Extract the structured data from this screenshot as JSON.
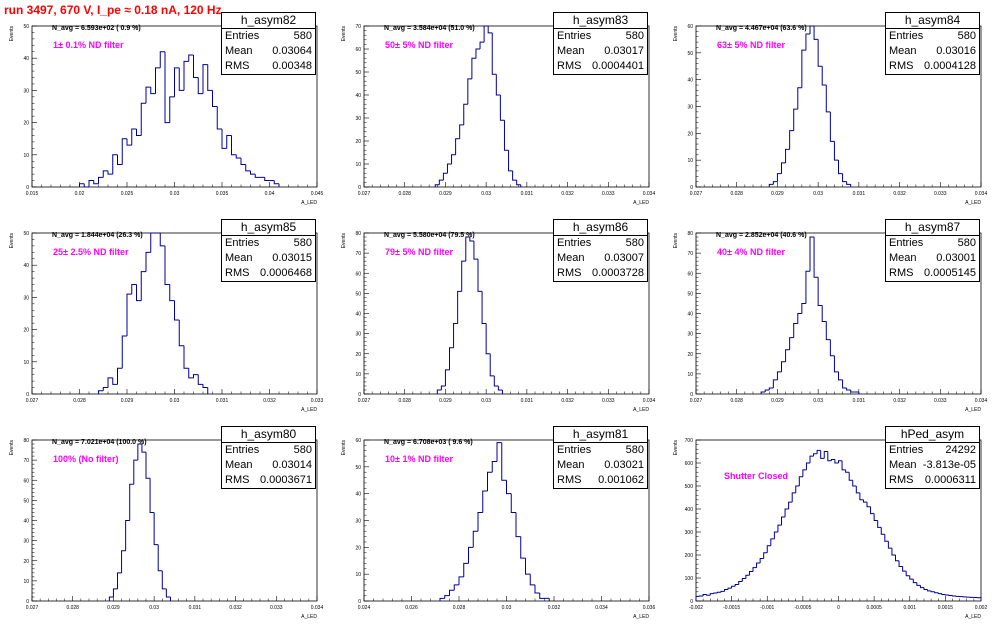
{
  "page": {
    "title": "run 3497,   670 V, I_pe ≈ 0.18 nA, 120 Hz"
  },
  "labels": {
    "y_axis": "Events",
    "x_axis": "A_LED"
  },
  "chart_data": [
    {
      "type": "bar",
      "name": "h_asym82",
      "stats": {
        "entries_label": "Entries",
        "entries": "580",
        "mean_label": "Mean",
        "mean": "0.03064",
        "rms_label": "RMS",
        "rms": "0.00348"
      },
      "nav_text": "N_avg = 6.593e+02 ( 0.9 %)",
      "filter_text": "1± 0.1% ND filter",
      "xlim": [
        0.015,
        0.045
      ],
      "ylim": [
        0,
        50
      ],
      "x_ticks": [
        "0.015",
        "0.02",
        "0.025",
        "0.03",
        "0.035",
        "0.04",
        "0.045"
      ],
      "x_tick_values": [
        0.015,
        0.02,
        0.025,
        0.03,
        0.035,
        0.04,
        0.045
      ],
      "y_ticks": [
        "0",
        "10",
        "20",
        "30",
        "40",
        "50"
      ],
      "y_tick_values": [
        0,
        10,
        20,
        30,
        40,
        50
      ],
      "bin_start": 0.02,
      "bin_width": 0.0005,
      "counts": [
        1,
        0,
        2,
        1,
        3,
        5,
        4,
        10,
        7,
        15,
        13,
        18,
        16,
        26,
        31,
        29,
        37,
        42,
        20,
        28,
        37,
        30,
        39,
        41,
        34,
        29,
        38,
        30,
        25,
        18,
        12,
        16,
        10,
        9,
        7,
        5,
        4,
        3,
        3,
        2,
        2,
        1
      ]
    },
    {
      "type": "bar",
      "name": "h_asym83",
      "stats": {
        "entries_label": "Entries",
        "entries": "580",
        "mean_label": "Mean",
        "mean": "0.03017",
        "rms_label": "RMS",
        "rms": "0.0004401"
      },
      "nav_text": "N_avg = 3.584e+04 (51.0 %)",
      "filter_text": "50± 5% ND filter",
      "xlim": [
        0.027,
        0.034
      ],
      "ylim": [
        0,
        70
      ],
      "x_ticks": [
        "0.027",
        "0.028",
        "0.029",
        "0.03",
        "0.031",
        "0.032",
        "0.033",
        "0.034"
      ],
      "x_tick_values": [
        0.027,
        0.028,
        0.029,
        0.03,
        0.031,
        0.032,
        0.033,
        0.034
      ],
      "y_ticks": [
        "0",
        "10",
        "20",
        "30",
        "40",
        "50",
        "60",
        "70"
      ],
      "y_tick_values": [
        0,
        10,
        20,
        30,
        40,
        50,
        60,
        70
      ],
      "bin_start": 0.02875,
      "bin_width": 0.0001,
      "counts": [
        1,
        3,
        6,
        10,
        14,
        21,
        27,
        36,
        47,
        56,
        60,
        63,
        71,
        67,
        49,
        40,
        29,
        16,
        7,
        3,
        1
      ]
    },
    {
      "type": "bar",
      "name": "h_asym84",
      "stats": {
        "entries_label": "Entries",
        "entries": "580",
        "mean_label": "Mean",
        "mean": "0.03016",
        "rms_label": "RMS",
        "rms": "0.0004128"
      },
      "nav_text": "N_avg = 4.467e+04 (63.6 %)",
      "filter_text": "63± 5% ND filter",
      "xlim": [
        0.027,
        0.034
      ],
      "ylim": [
        0,
        60
      ],
      "x_ticks": [
        "0.027",
        "0.028",
        "0.029",
        "0.03",
        "0.031",
        "0.032",
        "0.033",
        "0.034"
      ],
      "x_tick_values": [
        0.027,
        0.028,
        0.029,
        0.03,
        0.031,
        0.032,
        0.033,
        0.034
      ],
      "y_ticks": [
        "0",
        "10",
        "20",
        "30",
        "40",
        "50",
        "60"
      ],
      "y_tick_values": [
        0,
        10,
        20,
        30,
        40,
        50,
        60
      ],
      "bin_start": 0.0288,
      "bin_width": 0.0001,
      "counts": [
        1,
        2,
        5,
        9,
        14,
        21,
        29,
        37,
        51,
        57,
        62,
        55,
        45,
        38,
        28,
        17,
        10,
        5,
        2,
        1
      ]
    },
    {
      "type": "bar",
      "name": "h_asym85",
      "stats": {
        "entries_label": "Entries",
        "entries": "580",
        "mean_label": "Mean",
        "mean": "0.03015",
        "rms_label": "RMS",
        "rms": "0.0006468"
      },
      "nav_text": "N_avg = 1.844e+04 (26.3 %)",
      "filter_text": "25± 2.5% ND filter",
      "xlim": [
        0.027,
        0.033
      ],
      "ylim": [
        0,
        50
      ],
      "x_ticks": [
        "0.027",
        "0.028",
        "0.029",
        "0.03",
        "0.031",
        "0.032",
        "0.033"
      ],
      "x_tick_values": [
        0.027,
        0.028,
        0.029,
        0.03,
        0.031,
        0.032,
        0.033
      ],
      "y_ticks": [
        "0",
        "10",
        "20",
        "30",
        "40",
        "50"
      ],
      "y_tick_values": [
        0,
        10,
        20,
        30,
        40,
        50
      ],
      "bin_start": 0.0284,
      "bin_width": 0.0001,
      "counts": [
        1,
        2,
        5,
        3,
        8,
        18,
        31,
        34,
        29,
        38,
        44,
        50,
        53,
        46,
        34,
        29,
        23,
        15,
        8,
        5,
        6,
        3,
        2
      ]
    },
    {
      "type": "bar",
      "name": "h_asym86",
      "stats": {
        "entries_label": "Entries",
        "entries": "580",
        "mean_label": "Mean",
        "mean": "0.03007",
        "rms_label": "RMS",
        "rms": "0.0003728"
      },
      "nav_text": "N_avg = 5.580e+04 (79.5 %)",
      "filter_text": "79± 5% ND filter",
      "xlim": [
        0.027,
        0.034
      ],
      "ylim": [
        0,
        80
      ],
      "x_ticks": [
        "0.027",
        "0.028",
        "0.029",
        "0.03",
        "0.031",
        "0.032",
        "0.033",
        "0.034"
      ],
      "x_tick_values": [
        0.027,
        0.028,
        0.029,
        0.03,
        0.031,
        0.032,
        0.033,
        0.034
      ],
      "y_ticks": [
        "0",
        "10",
        "20",
        "30",
        "40",
        "50",
        "60",
        "70",
        "80"
      ],
      "y_tick_values": [
        0,
        10,
        20,
        30,
        40,
        50,
        60,
        70,
        80
      ],
      "bin_start": 0.0288,
      "bin_width": 0.0001,
      "counts": [
        2,
        4,
        12,
        23,
        35,
        51,
        66,
        78,
        76,
        67,
        51,
        35,
        20,
        9,
        4,
        2
      ]
    },
    {
      "type": "bar",
      "name": "h_asym87",
      "stats": {
        "entries_label": "Entries",
        "entries": "580",
        "mean_label": "Mean",
        "mean": "0.03001",
        "rms_label": "RMS",
        "rms": "0.0005145"
      },
      "nav_text": "N_avg = 2.852e+04 (40.6 %)",
      "filter_text": "40± 4% ND filter",
      "xlim": [
        0.027,
        0.034
      ],
      "ylim": [
        0,
        80
      ],
      "x_ticks": [
        "0.027",
        "0.028",
        "0.029",
        "0.03",
        "0.031",
        "0.032",
        "0.033",
        "0.034"
      ],
      "x_tick_values": [
        0.027,
        0.028,
        0.029,
        0.03,
        0.031,
        0.032,
        0.033,
        0.034
      ],
      "y_ticks": [
        "0",
        "10",
        "20",
        "30",
        "40",
        "50",
        "60",
        "70",
        "80"
      ],
      "y_tick_values": [
        0,
        10,
        20,
        30,
        40,
        50,
        60,
        70,
        80
      ],
      "bin_start": 0.0286,
      "bin_width": 0.0001,
      "counts": [
        1,
        2,
        3,
        7,
        11,
        16,
        22,
        28,
        35,
        40,
        45,
        61,
        78,
        58,
        44,
        36,
        27,
        19,
        11,
        7,
        3,
        2,
        1,
        1
      ]
    },
    {
      "type": "bar",
      "name": "h_asym80",
      "stats": {
        "entries_label": "Entries",
        "entries": "580",
        "mean_label": "Mean",
        "mean": "0.03014",
        "rms_label": "RMS",
        "rms": "0.0003671"
      },
      "nav_text": "N_avg = 7.021e+04 (100.0 %)",
      "filter_text": "100% (No filter)",
      "xlim": [
        0.027,
        0.034
      ],
      "ylim": [
        0,
        80
      ],
      "x_ticks": [
        "0.027",
        "0.028",
        "0.029",
        "0.03",
        "0.031",
        "0.032",
        "0.033",
        "0.034"
      ],
      "x_tick_values": [
        0.027,
        0.028,
        0.029,
        0.03,
        0.031,
        0.032,
        0.033,
        0.034
      ],
      "y_ticks": [
        "0",
        "10",
        "20",
        "30",
        "40",
        "50",
        "60",
        "70",
        "80"
      ],
      "y_tick_values": [
        0,
        10,
        20,
        30,
        40,
        50,
        60,
        70,
        80
      ],
      "bin_start": 0.0289,
      "bin_width": 0.0001,
      "counts": [
        2,
        6,
        14,
        25,
        40,
        58,
        70,
        78,
        74,
        61,
        44,
        28,
        15,
        6,
        2
      ]
    },
    {
      "type": "bar",
      "name": "h_asym81",
      "stats": {
        "entries_label": "Entries",
        "entries": "580",
        "mean_label": "Mean",
        "mean": "0.03021",
        "rms_label": "RMS",
        "rms": "0.001062"
      },
      "nav_text": "N_avg = 6.708e+03 ( 9.6 %)",
      "filter_text": "10± 1% ND filter",
      "xlim": [
        0.024,
        0.036
      ],
      "ylim": [
        0,
        60
      ],
      "x_ticks": [
        "0.024",
        "0.026",
        "0.028",
        "0.03",
        "0.032",
        "0.034",
        "0.036"
      ],
      "x_tick_values": [
        0.024,
        0.026,
        0.028,
        0.03,
        0.032,
        0.034,
        0.036
      ],
      "y_ticks": [
        "0",
        "10",
        "20",
        "30",
        "40",
        "50",
        "60"
      ],
      "y_tick_values": [
        0,
        10,
        20,
        30,
        40,
        50,
        60
      ],
      "bin_start": 0.0272,
      "bin_width": 0.0002,
      "counts": [
        1,
        2,
        4,
        6,
        9,
        14,
        20,
        26,
        33,
        41,
        48,
        52,
        59,
        45,
        40,
        33,
        24,
        16,
        10,
        6,
        3,
        1,
        1
      ]
    },
    {
      "type": "bar",
      "name": "hPed_asym",
      "stats": {
        "entries_label": "Entries",
        "entries": "24292",
        "mean_label": "Mean",
        "mean": "-3.813e-05",
        "rms_label": "RMS",
        "rms": "0.0006311"
      },
      "nav_text": "",
      "filter_text": "Shutter Closed",
      "xlim": [
        -0.002,
        0.002
      ],
      "ylim": [
        0,
        700
      ],
      "x_ticks": [
        "-0.002",
        "-0.0015",
        "-0.001",
        "-0.0005",
        "0",
        "0.0005",
        "0.001",
        "0.0015",
        "0.002"
      ],
      "x_tick_values": [
        -0.002,
        -0.0015,
        -0.001,
        -0.0005,
        0,
        0.0005,
        0.001,
        0.0015,
        0.002
      ],
      "y_ticks": [
        "0",
        "100",
        "200",
        "300",
        "400",
        "500",
        "600",
        "700"
      ],
      "y_tick_values": [
        0,
        100,
        200,
        300,
        400,
        500,
        600,
        700
      ],
      "bin_start": -0.002,
      "bin_width": 5e-05,
      "counts": [
        20,
        22,
        28,
        25,
        32,
        35,
        38,
        42,
        50,
        56,
        64,
        72,
        85,
        98,
        112,
        128,
        145,
        165,
        185,
        210,
        240,
        270,
        300,
        330,
        365,
        400,
        430,
        470,
        500,
        540,
        570,
        600,
        630,
        640,
        655,
        620,
        650,
        610,
        615,
        600,
        610,
        570,
        560,
        525,
        500,
        470,
        440,
        430,
        410,
        380,
        350,
        320,
        290,
        260,
        230,
        200,
        175,
        150,
        130,
        110,
        95,
        80,
        68,
        58,
        50,
        44,
        40,
        36,
        32,
        28,
        26,
        24,
        22,
        20,
        19,
        18,
        17,
        16,
        15,
        14
      ]
    }
  ]
}
